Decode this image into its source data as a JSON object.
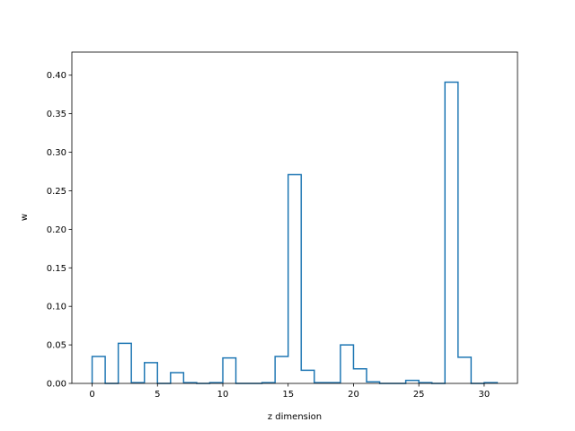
{
  "chart_data": {
    "type": "bar",
    "style": "step",
    "xlabel": "z dimension",
    "ylabel": "w",
    "xlim": [
      -1.55,
      32.55
    ],
    "ylim": [
      0,
      0.43
    ],
    "grid": false,
    "legend": "none",
    "x_ticks": [
      0,
      5,
      10,
      15,
      20,
      25,
      30
    ],
    "y_ticks": [
      "0.00",
      "0.05",
      "0.10",
      "0.15",
      "0.20",
      "0.25",
      "0.30",
      "0.35",
      "0.40"
    ],
    "categories": [
      0,
      1,
      2,
      3,
      4,
      5,
      6,
      7,
      8,
      9,
      10,
      11,
      12,
      13,
      14,
      15,
      16,
      17,
      18,
      19,
      20,
      21,
      22,
      23,
      24,
      25,
      26,
      27,
      28,
      29,
      30,
      31
    ],
    "values": [
      0.035,
      0.0,
      0.052,
      0.001,
      0.027,
      0.0,
      0.014,
      0.001,
      0.0,
      0.001,
      0.033,
      0.0,
      0.0,
      0.001,
      0.035,
      0.271,
      0.017,
      0.001,
      0.001,
      0.05,
      0.019,
      0.002,
      0.0,
      0.0,
      0.004,
      0.001,
      0.0,
      0.391,
      0.034,
      0.0,
      0.001,
      0.0
    ],
    "series_color": "#1f77b4"
  }
}
